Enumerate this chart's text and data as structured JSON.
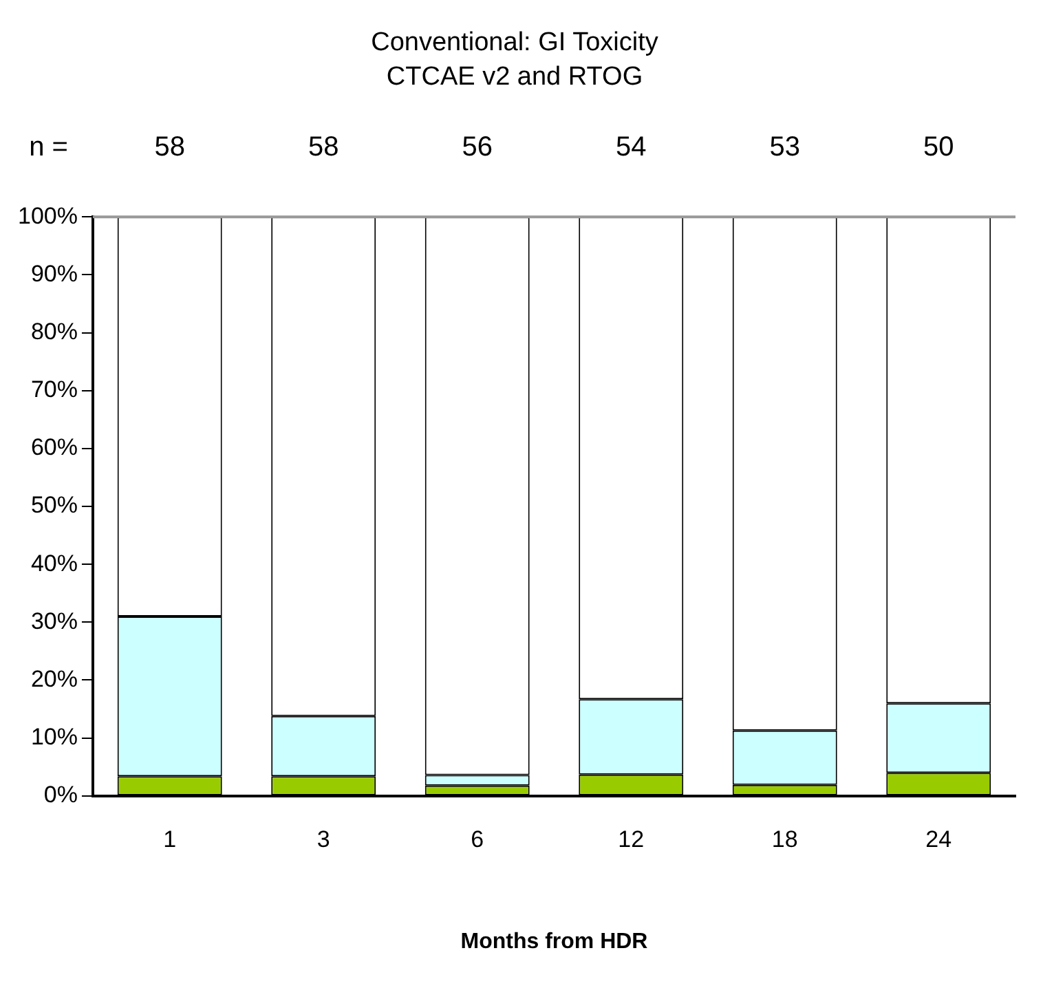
{
  "chart_data": {
    "type": "bar",
    "title": "Conventional: GI Toxicity",
    "subtitle": "CTCAE v2 and RTOG",
    "xlabel": "Months from HDR",
    "categories": [
      "1",
      "3",
      "6",
      "12",
      "18",
      "24"
    ],
    "stacked": true,
    "ylim": [
      0,
      100
    ],
    "yticks": [
      {
        "value": 0,
        "label": "0%"
      },
      {
        "value": 10,
        "label": "10%"
      },
      {
        "value": 20,
        "label": "20%"
      },
      {
        "value": 30,
        "label": "30%"
      },
      {
        "value": 40,
        "label": "40%"
      },
      {
        "value": 50,
        "label": "50%"
      },
      {
        "value": 60,
        "label": "60%"
      },
      {
        "value": 70,
        "label": "70%"
      },
      {
        "value": 80,
        "label": "80%"
      },
      {
        "value": 90,
        "label": "90%"
      },
      {
        "value": 100,
        "label": "100%"
      }
    ],
    "grid": false,
    "legend": false,
    "series": [
      {
        "color": "#99cc00",
        "values": [
          3.4,
          3.4,
          1.8,
          3.7,
          1.9,
          4.0
        ]
      },
      {
        "color": "#ccffff",
        "values": [
          27.6,
          10.4,
          1.8,
          13.0,
          9.4,
          12.0
        ]
      },
      {
        "color": "#ffffff",
        "values": [
          69.0,
          86.2,
          96.4,
          83.3,
          88.7,
          84.0
        ]
      }
    ],
    "annotations": [
      "n =",
      "58",
      "58",
      "56",
      "54",
      "53",
      "50"
    ]
  }
}
